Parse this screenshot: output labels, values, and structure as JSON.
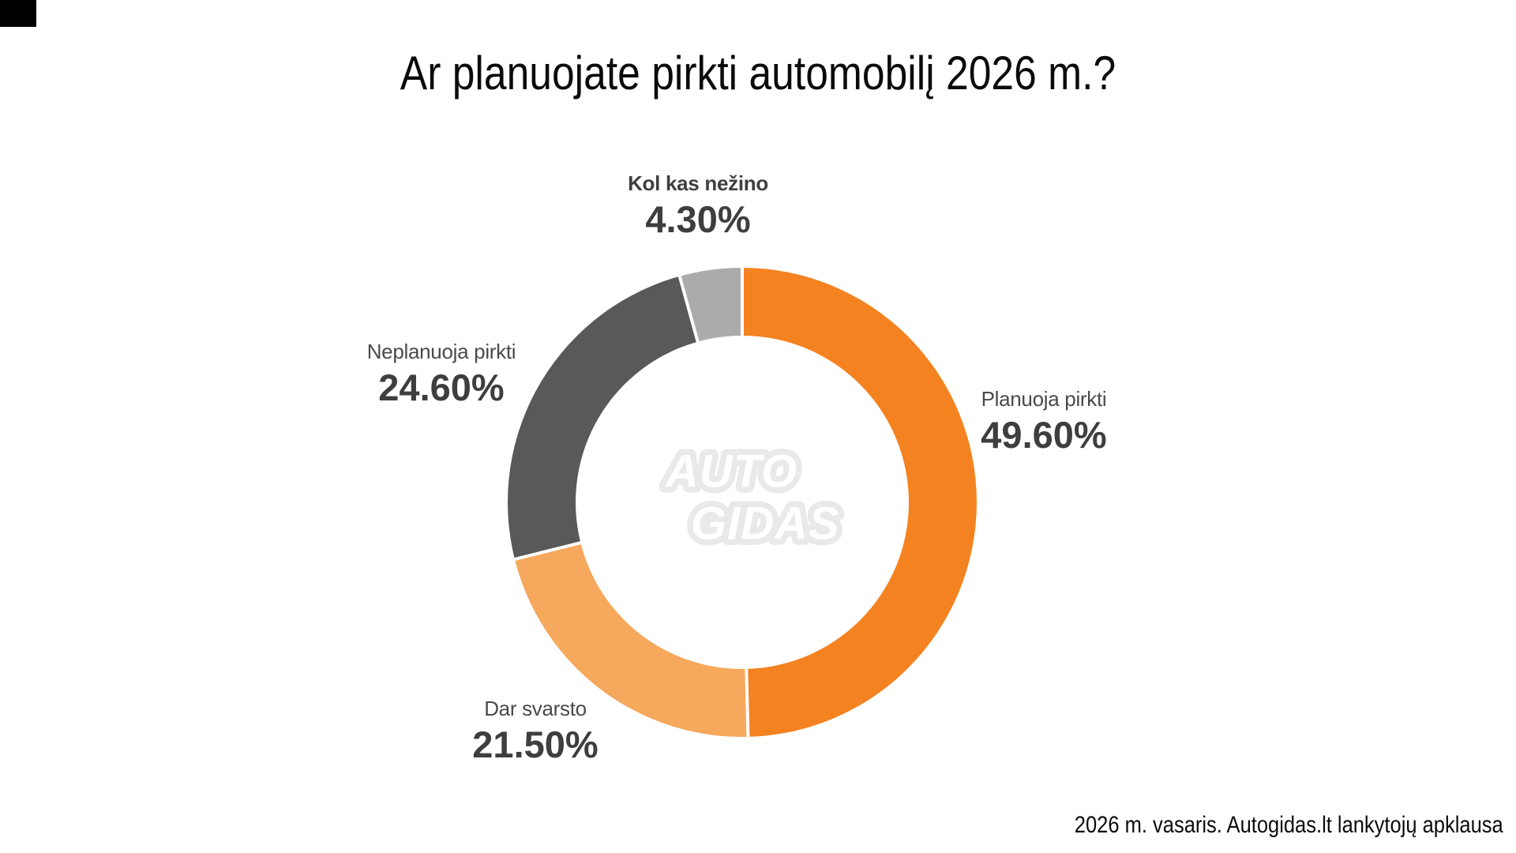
{
  "title": "Ar planuojate pirkti automobilį 2026 m.?",
  "source_note": "2026 m. vasaris. Autogidas.lt lankytojų apklausa",
  "logo": {
    "line1": "AUTO",
    "line2": "GIDAS"
  },
  "colors": {
    "background": "#ffffff",
    "separator": "#ffffff",
    "text_dark": "#3e3e3e",
    "logo_plate": "#e9e9e9"
  },
  "chart_data": {
    "type": "pie",
    "subtype": "donut",
    "title": "Ar planuojate pirkti automobilį 2026 m.?",
    "start_angle_deg": 0,
    "direction": "clockwise",
    "legend_position": "labels-around-chart",
    "slices": [
      {
        "label": "Planuoja pirkti",
        "value": 49.6,
        "display": "49.60%",
        "color": "#F58220"
      },
      {
        "label": "Dar svarsto",
        "value": 21.5,
        "display": "21.50%",
        "color": "#F6A85C"
      },
      {
        "label": "Neplanuoja pirkti",
        "value": 24.6,
        "display": "24.60%",
        "color": "#595959"
      },
      {
        "label": "Kol kas nežino",
        "value": 4.3,
        "display": "4.30%",
        "color": "#ABABAB"
      }
    ]
  }
}
